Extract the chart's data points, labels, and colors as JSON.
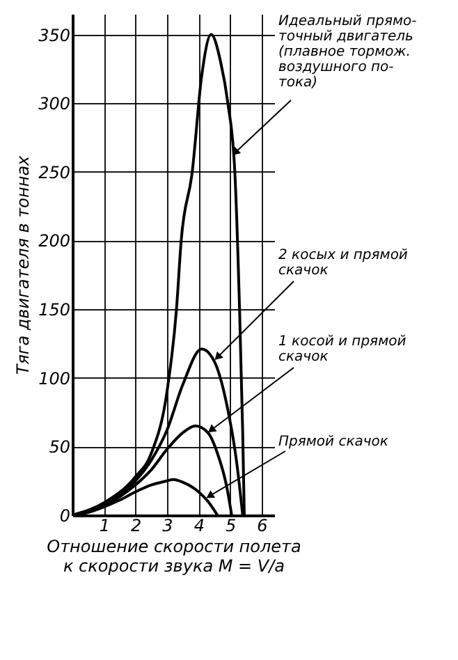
{
  "chart_data": {
    "type": "line",
    "xlabel": "Отношение скорости полета\nк скорости звука  M = V/a",
    "ylabel": "Тяга двигателя в тоннах",
    "xlim": [
      0,
      6.4
    ],
    "ylim": [
      0,
      365
    ],
    "xticks": [
      1,
      2,
      3,
      4,
      5,
      6
    ],
    "yticks": [
      0,
      50,
      100,
      150,
      200,
      250,
      300,
      350
    ],
    "grid": true,
    "line_style": "solid",
    "series": [
      {
        "color": "#000000",
        "x": [
          0,
          1,
          2,
          2.5,
          3,
          3.3,
          3.45,
          3.8,
          4.1,
          4.4,
          4.7,
          4.93,
          5.15,
          5.3,
          5.4,
          5.45
        ],
        "values": [
          0,
          9,
          28,
          45,
          90,
          150,
          200,
          250,
          320,
          350,
          330,
          300,
          250,
          150,
          60,
          0
        ]
      },
      {
        "color": "#000000",
        "x": [
          0,
          1,
          2,
          2.5,
          3,
          3.5,
          4.1,
          4.5,
          4.9,
          5.2,
          5.4
        ],
        "values": [
          0,
          8,
          25,
          40,
          62,
          95,
          121,
          112,
          80,
          40,
          0
        ]
      },
      {
        "color": "#000000",
        "x": [
          0,
          1,
          2,
          2.5,
          3,
          3.5,
          3.9,
          4.3,
          4.6,
          4.9,
          5.05
        ],
        "values": [
          0,
          7,
          22,
          33,
          48,
          60,
          65,
          60,
          45,
          20,
          0
        ]
      },
      {
        "color": "#000000",
        "x": [
          0,
          0.5,
          1,
          1.5,
          2,
          2.5,
          3,
          3.2,
          3.5,
          4,
          4.3,
          4.6
        ],
        "values": [
          0,
          2,
          6,
          11,
          17,
          22,
          25,
          26,
          24,
          17,
          10,
          0
        ]
      }
    ],
    "annotations": [
      {
        "text": "Идеальный прямо-\nточный двигатель\n(плавное тормож.\nвоздушного по-\nтока)",
        "x": 5.16,
        "y": 264
      },
      {
        "text": "2 косых и прямой\nскачок",
        "x": 4.6,
        "y": 115
      },
      {
        "text": "1 косой и прямой\nскачок",
        "x": 4.4,
        "y": 62
      },
      {
        "text": "Прямой скачок",
        "x": 4.35,
        "y": 14
      }
    ]
  }
}
